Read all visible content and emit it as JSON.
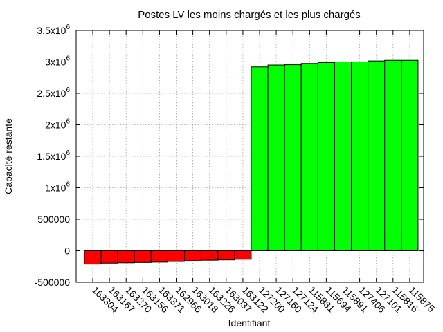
{
  "chart_data": {
    "type": "bar",
    "title": "Postes LV les moins chargés et les plus chargés",
    "xlabel": "Identifiant",
    "ylabel": "Capacité restante",
    "ylim": [
      -500000,
      3500000
    ],
    "y_ticks": [
      {
        "value": 3500000,
        "mantissa": "3.5x10",
        "exp": "6"
      },
      {
        "value": 3000000,
        "mantissa": "3x10",
        "exp": "6"
      },
      {
        "value": 2500000,
        "mantissa": "2.5x10",
        "exp": "6"
      },
      {
        "value": 2000000,
        "mantissa": "2x10",
        "exp": "6"
      },
      {
        "value": 1500000,
        "mantissa": "1.5x10",
        "exp": "6"
      },
      {
        "value": 1000000,
        "mantissa": "1x10",
        "exp": "6"
      },
      {
        "value": 500000,
        "mantissa": "500000",
        "exp": ""
      },
      {
        "value": 0,
        "mantissa": "0",
        "exp": ""
      },
      {
        "value": -500000,
        "mantissa": "-500000",
        "exp": ""
      }
    ],
    "grid": true,
    "legend": "none",
    "categories": [
      "163304",
      "163167",
      "163270",
      "163156",
      "163371",
      "162966",
      "163018",
      "163226",
      "163037",
      "163122",
      "127200",
      "127160",
      "127124",
      "115881",
      "115694",
      "115891",
      "127406",
      "127101",
      "115816",
      "115875"
    ],
    "values": [
      -210000,
      -195000,
      -190000,
      -185000,
      -180000,
      -170000,
      -160000,
      -150000,
      -145000,
      -135000,
      2920000,
      2950000,
      2955000,
      2975000,
      2990000,
      3000000,
      3000000,
      3015000,
      3025000,
      3025000
    ],
    "colors": [
      "#ff0000",
      "#ff0000",
      "#ff0000",
      "#ff0000",
      "#ff0000",
      "#ff0000",
      "#ff0000",
      "#ff0000",
      "#ff0000",
      "#ff0000",
      "#00ff00",
      "#00ff00",
      "#00ff00",
      "#00ff00",
      "#00ff00",
      "#00ff00",
      "#00ff00",
      "#00ff00",
      "#00ff00",
      "#00ff00"
    ]
  }
}
